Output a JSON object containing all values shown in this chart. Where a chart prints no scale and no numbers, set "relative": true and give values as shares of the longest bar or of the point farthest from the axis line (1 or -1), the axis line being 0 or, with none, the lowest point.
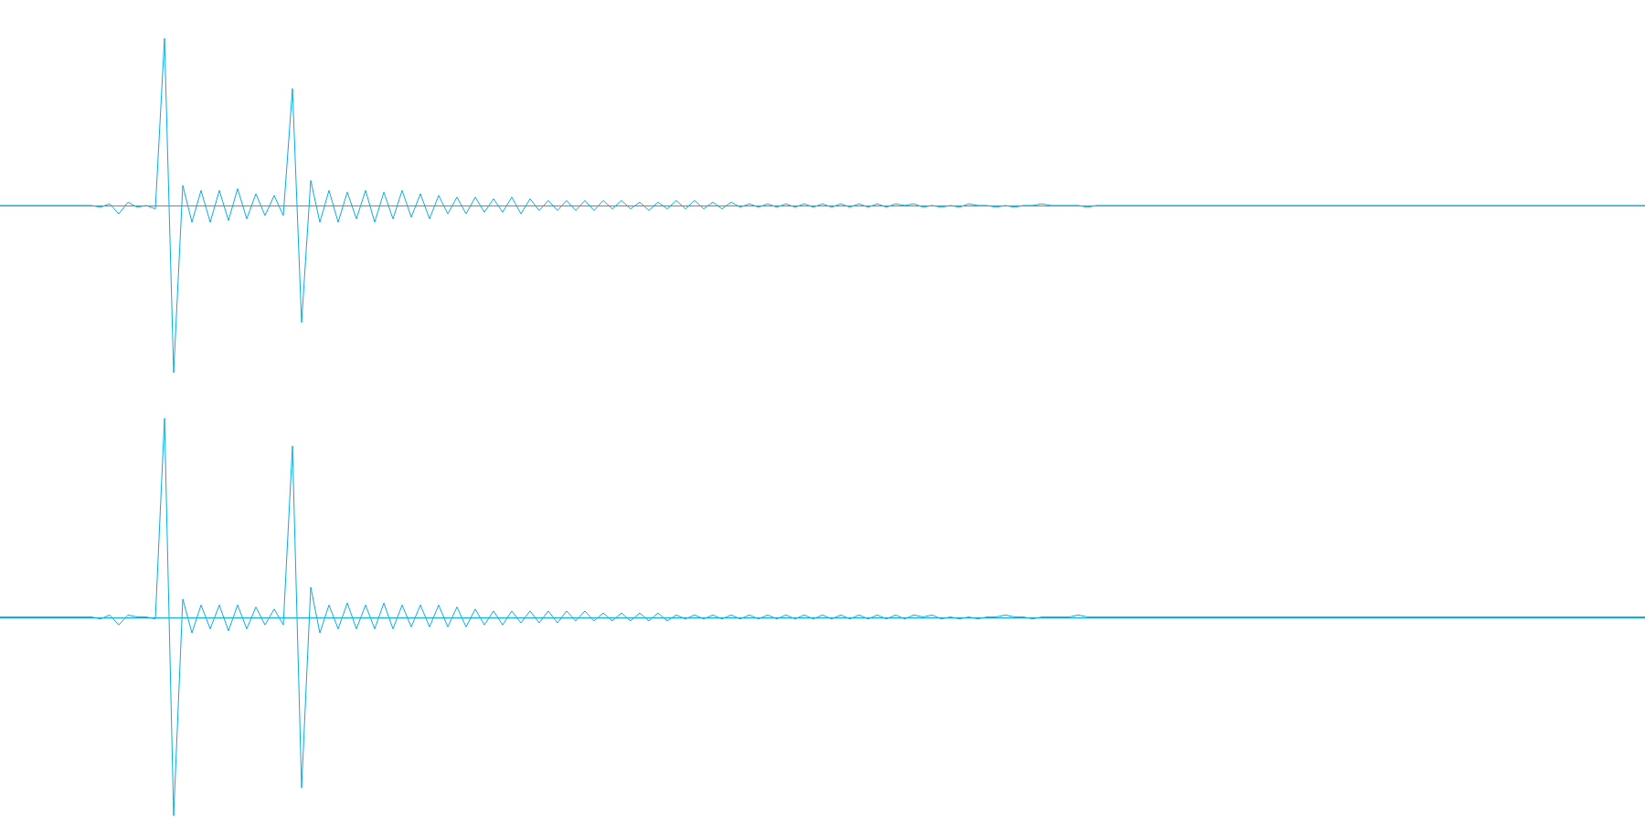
{
  "chart_data": [
    {
      "type": "line",
      "relative": true,
      "marker": "none",
      "color": "#06aee3",
      "ref_lines": [
        {
          "axis": "y",
          "value": 0,
          "color": "#06aee3"
        }
      ],
      "categories": [
        null,
        null,
        null,
        null,
        null,
        null,
        null,
        null,
        null,
        null,
        null,
        null,
        null,
        null,
        null,
        null,
        null,
        null,
        null,
        null,
        null,
        null,
        null,
        null,
        null,
        null,
        null,
        null,
        null,
        null,
        null,
        null,
        null,
        null,
        null,
        null,
        null,
        null,
        null,
        null,
        null,
        null,
        null,
        null,
        null,
        null,
        null,
        null,
        null,
        null,
        null,
        null,
        null,
        null,
        null,
        null,
        null,
        null,
        null,
        null,
        null,
        null,
        null,
        null,
        null,
        null,
        null,
        null,
        null,
        null,
        null,
        null,
        null,
        null,
        null,
        null,
        null,
        null,
        null,
        null,
        null,
        null,
        null,
        null,
        null,
        null,
        null,
        null,
        null,
        null,
        null,
        null,
        null,
        null,
        null,
        null,
        null,
        null,
        null,
        null,
        null,
        null,
        null,
        null,
        null,
        null,
        null,
        null,
        null,
        null,
        null,
        null,
        null,
        null,
        null,
        null,
        null,
        null,
        null,
        null,
        null,
        null,
        null,
        null,
        null,
        null,
        null,
        null,
        null,
        null,
        null,
        null,
        null,
        null,
        null,
        null,
        null,
        null,
        null,
        null,
        null,
        null,
        null,
        null,
        null,
        null,
        null,
        null,
        null,
        null,
        null,
        null,
        null,
        null,
        null,
        null,
        null,
        null,
        null,
        null,
        null,
        null,
        null,
        null,
        null,
        null,
        null,
        null,
        null,
        null,
        null,
        null,
        null,
        null,
        null,
        null,
        null,
        null,
        null,
        null,
        null
      ],
      "values": [
        0,
        0,
        0,
        0,
        0,
        0,
        0,
        0,
        0,
        0,
        0,
        -0.01,
        0.01,
        -0.05,
        0.02,
        -0.01,
        0,
        -0.02,
        1,
        -1,
        0.12,
        -0.1,
        0.09,
        -0.1,
        0.09,
        -0.09,
        0.1,
        -0.08,
        0.07,
        -0.06,
        0.06,
        -0.06,
        0.7,
        -0.7,
        0.15,
        -0.1,
        0.09,
        -0.1,
        0.08,
        -0.08,
        0.09,
        -0.1,
        0.08,
        -0.08,
        0.09,
        -0.07,
        0.07,
        -0.08,
        0.06,
        -0.05,
        0.05,
        -0.05,
        0.05,
        -0.04,
        0.04,
        -0.04,
        0.05,
        -0.05,
        0.04,
        -0.03,
        0.03,
        -0.03,
        0.03,
        -0.03,
        0.03,
        -0.03,
        0.03,
        -0.02,
        0.03,
        -0.02,
        0.02,
        -0.03,
        0.02,
        -0.02,
        0.03,
        -0.02,
        0.03,
        -0.02,
        0.02,
        -0.02,
        0.02,
        -0.01,
        0.01,
        -0.01,
        0.01,
        -0.01,
        0.01,
        -0.01,
        0.01,
        -0.01,
        0.01,
        -0.01,
        0.01,
        -0.01,
        0.01,
        -0.01,
        0.01,
        -0.01,
        0.01,
        0,
        0.01,
        -0.01,
        0,
        -0.01,
        0,
        -0.01,
        0.01,
        0,
        0,
        -0.01,
        0,
        -0.01,
        0,
        0,
        0.01,
        0,
        0,
        0,
        0,
        -0.01,
        0,
        0,
        0,
        0,
        0,
        0,
        0,
        0,
        0,
        0,
        0,
        0,
        0,
        0,
        0,
        0,
        0,
        0,
        0,
        0,
        0,
        0,
        0,
        0,
        0,
        0,
        0,
        0,
        0,
        0,
        0,
        0,
        0,
        0,
        0,
        0,
        0,
        0,
        0,
        0,
        0,
        0,
        0,
        0,
        0,
        0,
        0,
        0,
        0,
        0,
        0,
        0,
        0,
        0,
        0,
        0,
        0,
        0,
        0,
        0,
        0
      ]
    },
    {
      "type": "line",
      "relative": true,
      "marker": "none",
      "color": "#06aee3",
      "ref_lines": [
        {
          "axis": "y",
          "value": 0,
          "color": "#06aee3"
        }
      ],
      "categories": [
        null,
        null,
        null,
        null,
        null,
        null,
        null,
        null,
        null,
        null,
        null,
        null,
        null,
        null,
        null,
        null,
        null,
        null,
        null,
        null,
        null,
        null,
        null,
        null,
        null,
        null,
        null,
        null,
        null,
        null,
        null,
        null,
        null,
        null,
        null,
        null,
        null,
        null,
        null,
        null,
        null,
        null,
        null,
        null,
        null,
        null,
        null,
        null,
        null,
        null,
        null,
        null,
        null,
        null,
        null,
        null,
        null,
        null,
        null,
        null,
        null,
        null,
        null,
        null,
        null,
        null,
        null,
        null,
        null,
        null,
        null,
        null,
        null,
        null,
        null,
        null,
        null,
        null,
        null,
        null,
        null,
        null,
        null,
        null,
        null,
        null,
        null,
        null,
        null,
        null,
        null,
        null,
        null,
        null,
        null,
        null,
        null,
        null,
        null,
        null,
        null,
        null,
        null,
        null,
        null,
        null,
        null,
        null,
        null,
        null,
        null,
        null,
        null,
        null,
        null,
        null,
        null,
        null,
        null,
        null,
        null,
        null,
        null,
        null,
        null,
        null,
        null,
        null,
        null,
        null,
        null,
        null,
        null,
        null,
        null,
        null,
        null,
        null,
        null,
        null,
        null,
        null,
        null,
        null,
        null,
        null,
        null,
        null,
        null,
        null,
        null,
        null,
        null,
        null,
        null,
        null,
        null,
        null,
        null,
        null,
        null,
        null,
        null,
        null,
        null,
        null,
        null,
        null,
        null,
        null,
        null,
        null,
        null,
        null,
        null,
        null,
        null,
        null,
        null,
        null,
        null
      ],
      "values": [
        0,
        0,
        0,
        0,
        0,
        0,
        0,
        0,
        0,
        0,
        0,
        -0.01,
        0.01,
        -0.04,
        0.01,
        0,
        0,
        -0.01,
        1,
        -1,
        0.09,
        -0.08,
        0.06,
        -0.06,
        0.06,
        -0.07,
        0.06,
        -0.06,
        0.05,
        -0.04,
        0.04,
        -0.04,
        0.86,
        -0.86,
        0.15,
        -0.08,
        0.06,
        -0.06,
        0.07,
        -0.06,
        0.06,
        -0.06,
        0.07,
        -0.06,
        0.06,
        -0.05,
        0.06,
        -0.05,
        0.06,
        -0.05,
        0.05,
        -0.05,
        0.04,
        -0.04,
        0.03,
        -0.04,
        0.03,
        -0.03,
        0.03,
        -0.03,
        0.03,
        -0.03,
        0.03,
        -0.02,
        0.03,
        -0.02,
        0.02,
        -0.02,
        0.02,
        -0.02,
        0.02,
        -0.02,
        0.02,
        -0.02,
        0.01,
        -0.01,
        0.01,
        -0.01,
        0.01,
        -0.01,
        0.01,
        -0.01,
        0.01,
        -0.01,
        0.01,
        -0.01,
        0.01,
        -0.01,
        0.01,
        -0.01,
        0.01,
        -0.01,
        0.01,
        -0.01,
        0.01,
        -0.01,
        0.01,
        -0.01,
        0.01,
        -0.01,
        0.01,
        0,
        0.01,
        -0.01,
        0,
        -0.01,
        0,
        -0.01,
        0,
        0,
        0.01,
        0,
        0,
        -0.01,
        0,
        0,
        0,
        0,
        0.01,
        0,
        0,
        0,
        0,
        0,
        0,
        0,
        0,
        0,
        0,
        0,
        0,
        0,
        0,
        0,
        0,
        0,
        0,
        0,
        0,
        0,
        0,
        0,
        0,
        0,
        0,
        0,
        0,
        0,
        0,
        0,
        0,
        0,
        0,
        0,
        0,
        0,
        0,
        0,
        0,
        0,
        0,
        0,
        0,
        0,
        0,
        0,
        0,
        0,
        0,
        0,
        0,
        0,
        0,
        0,
        0,
        0,
        0,
        0,
        0,
        0,
        0
      ]
    }
  ]
}
